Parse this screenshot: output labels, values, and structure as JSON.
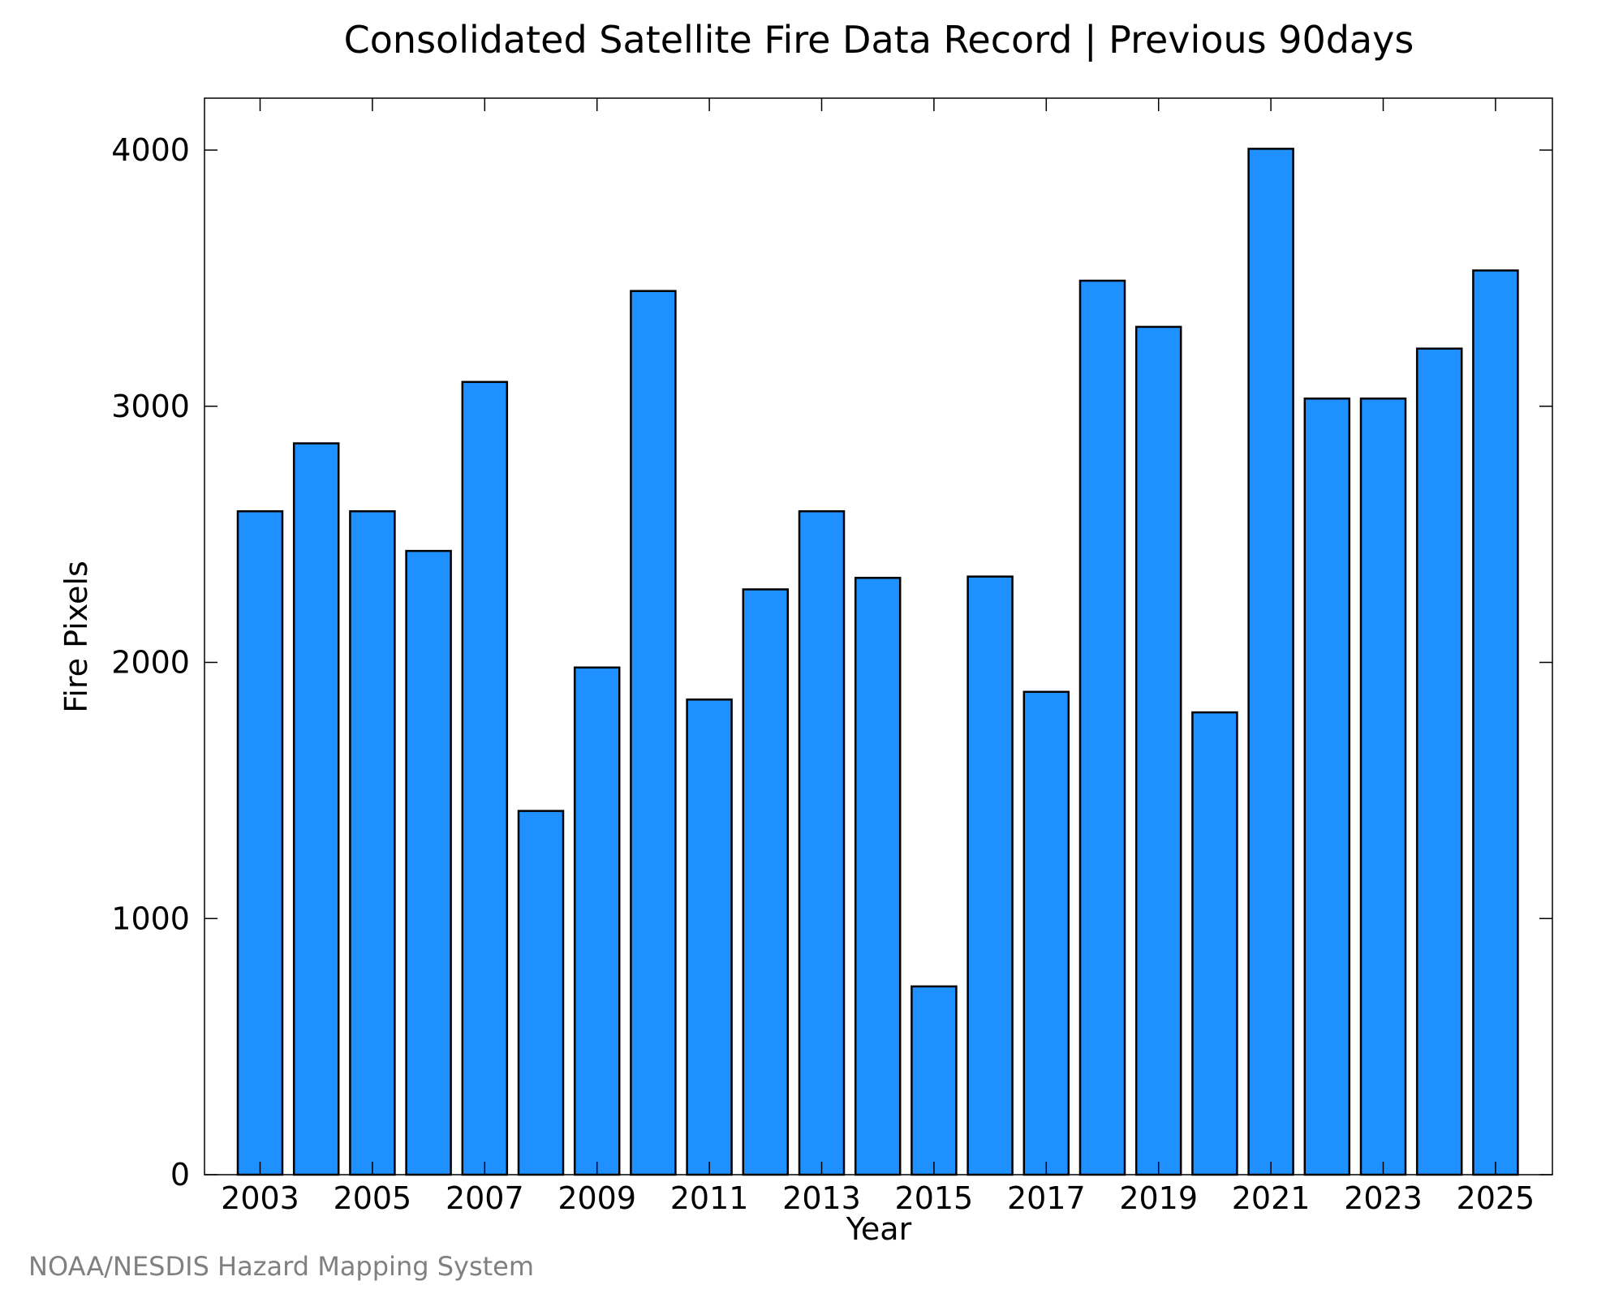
{
  "chart_data": {
    "type": "bar",
    "title": "Consolidated Satellite Fire Data Record | Previous 90days",
    "xlabel": "Year",
    "ylabel": "Fire Pixels",
    "categories": [
      "2003",
      "2004",
      "2005",
      "2006",
      "2007",
      "2008",
      "2009",
      "2010",
      "2011",
      "2012",
      "2013",
      "2014",
      "2015",
      "2016",
      "2017",
      "2018",
      "2019",
      "2020",
      "2021",
      "2022",
      "2023",
      "2024",
      "2025"
    ],
    "values": [
      2590,
      2855,
      2590,
      2435,
      3095,
      1420,
      1980,
      3450,
      1855,
      2285,
      2590,
      2330,
      735,
      2335,
      1885,
      3490,
      3310,
      1805,
      4005,
      3030,
      3030,
      3225,
      3530
    ],
    "x_tick_labels": [
      "2003",
      "2005",
      "2007",
      "2009",
      "2011",
      "2013",
      "2015",
      "2017",
      "2019",
      "2021",
      "2023",
      "2025"
    ],
    "y_ticks": [
      "0",
      "1000",
      "2000",
      "3000",
      "4000"
    ],
    "ylim": [
      0,
      4200
    ],
    "grid": false,
    "legend": "none",
    "bar_color": "#1e90ff",
    "bar_edge_color": "#000000"
  },
  "credit": "NOAA/NESDIS Hazard Mapping System"
}
